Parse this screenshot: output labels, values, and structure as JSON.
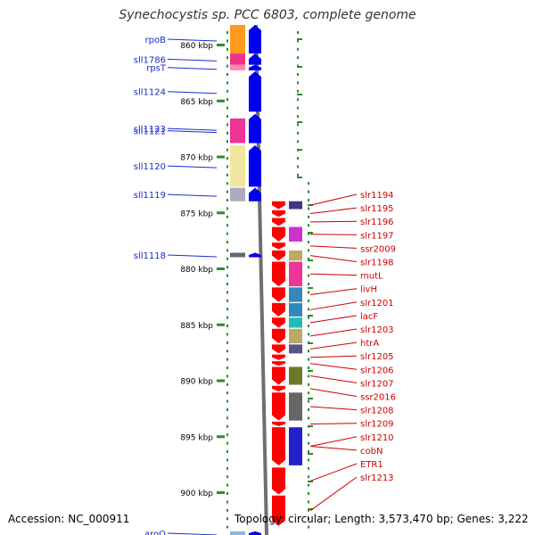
{
  "title": "Synechocystis sp. PCC 6803, complete genome",
  "footer": {
    "accession": "Accession: NC_000911",
    "topology": "Topology: circular; Length: 3,573,470 bp; Genes: 3,222"
  },
  "ruler": {
    "ticks": [
      {
        "kbp": 860,
        "label": "860 kbp"
      },
      {
        "kbp": 865,
        "label": "865 kbp"
      },
      {
        "kbp": 870,
        "label": "870 kbp"
      },
      {
        "kbp": 875,
        "label": "875 kbp"
      },
      {
        "kbp": 880,
        "label": "880 kbp"
      },
      {
        "kbp": 885,
        "label": "885 kbp"
      },
      {
        "kbp": 890,
        "label": "890 kbp"
      },
      {
        "kbp": 895,
        "label": "895 kbp"
      },
      {
        "kbp": 900,
        "label": "900 kbp"
      }
    ]
  },
  "genes_reverse": [
    {
      "name": "rpoB",
      "start": 857.9,
      "end": 860.8,
      "cog_color": "#ff9a1e"
    },
    {
      "name": "sll1786",
      "start": 860.8,
      "end": 861.8,
      "cog_color": "#ee3388"
    },
    {
      "name": "rpsT",
      "start": 861.8,
      "end": 862.3,
      "cog_color": "#ff88aa"
    },
    {
      "name": "sll1124",
      "start": 862.4,
      "end": 866.0,
      "cog_color": null
    },
    {
      "name": "sll1123",
      "start": 866.2,
      "end": 868.8,
      "cog_color": null
    },
    {
      "name": "sll1121",
      "start": 866.6,
      "end": 868.8,
      "cog_color": "#ee3399"
    },
    {
      "name": "sll1120",
      "start": 869.0,
      "end": 872.7,
      "cog_color": "#efe6a0"
    },
    {
      "name": "sll1119",
      "start": 872.8,
      "end": 874.0,
      "cog_color": "#aaaabb"
    },
    {
      "name": "sll1118",
      "start": 878.6,
      "end": 879.0,
      "cog_color": "#666677"
    },
    {
      "name": "aroQ",
      "start": 903.5,
      "end": 904.2,
      "cog_color": "#88bbdd"
    }
  ],
  "genes_forward": [
    {
      "name": "slr1194",
      "start": 874.0,
      "end": 874.7,
      "cog_color": "#443388"
    },
    {
      "name": "slr1195",
      "start": 874.8,
      "end": 875.4,
      "cog_color": null
    },
    {
      "name": "slr1196",
      "start": 875.5,
      "end": 876.2,
      "cog_color": null
    },
    {
      "name": "slr1197",
      "start": 876.3,
      "end": 877.6,
      "cog_color": "#cc33cc"
    },
    {
      "name": "ssr2009",
      "start": 877.7,
      "end": 878.3,
      "cog_color": null
    },
    {
      "name": "slr1198",
      "start": 878.4,
      "end": 879.3,
      "cog_color": "#bbaa66"
    },
    {
      "name": "mutL",
      "start": 879.4,
      "end": 881.6,
      "cog_color": "#ee3399"
    },
    {
      "name": "livH",
      "start": 881.7,
      "end": 883.0,
      "cog_color": "#3388bb"
    },
    {
      "name": "slr1201",
      "start": 883.1,
      "end": 884.3,
      "cog_color": "#3388bb"
    },
    {
      "name": "lacF",
      "start": 884.4,
      "end": 885.3,
      "cog_color": "#22bbbb"
    },
    {
      "name": "slr1203",
      "start": 885.4,
      "end": 886.7,
      "cog_color": "#bbaa66"
    },
    {
      "name": "htrA",
      "start": 886.8,
      "end": 887.6,
      "cog_color": "#555588"
    },
    {
      "name": "slr1205",
      "start": 887.7,
      "end": 888.2,
      "cog_color": null
    },
    {
      "name": "slr1206",
      "start": 888.3,
      "end": 888.7,
      "cog_color": null
    },
    {
      "name": "slr1207",
      "start": 888.8,
      "end": 890.4,
      "cog_color": "#6b7a2a"
    },
    {
      "name": "ssr2016",
      "start": 890.5,
      "end": 891.0,
      "cog_color": null
    },
    {
      "name": "slr1208",
      "start": 891.1,
      "end": 893.6,
      "cog_color": "#666666"
    },
    {
      "name": "slr1209",
      "start": 893.7,
      "end": 894.1,
      "cog_color": null
    },
    {
      "name": "slr1210",
      "start": 894.2,
      "end": 897.6,
      "cog_color": "#2222cc"
    },
    {
      "name": "cobN",
      "start": 894.2,
      "end": 897.6,
      "cog_color": null
    },
    {
      "name": "ETR1",
      "start": 897.8,
      "end": 900.2,
      "cog_color": null
    },
    {
      "name": "slr1213",
      "start": 900.3,
      "end": 903.0,
      "cog_color": null
    }
  ]
}
